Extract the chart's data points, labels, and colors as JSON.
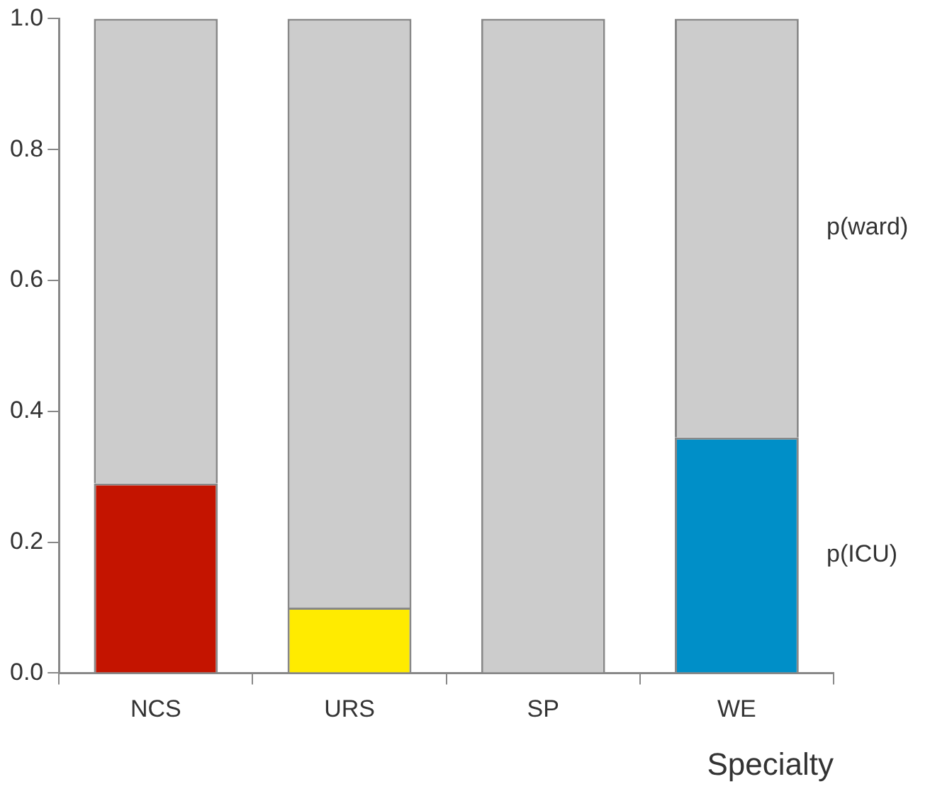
{
  "chart_data": {
    "type": "bar",
    "stacked": true,
    "xlabel": "Specialty",
    "categories": [
      "NCS",
      "URS",
      "SP",
      "WE"
    ],
    "series": [
      {
        "name": "p(ICU)",
        "colors": [
          "#c41400",
          "#ffeb00",
          "#c41400",
          "#008fc8"
        ],
        "values": [
          0.29,
          0.1,
          0,
          0.36
        ]
      },
      {
        "name": "p(ward)",
        "color": "#cccccc",
        "values": [
          0.71,
          0.9,
          1.0,
          0.64
        ]
      }
    ],
    "ylim": [
      0,
      1.0
    ],
    "yticks": [
      {
        "value": 0,
        "label": "0.0"
      },
      {
        "value": 0.2,
        "label": "0.2"
      },
      {
        "value": 0.4,
        "label": "0.4"
      },
      {
        "value": 0.6,
        "label": "0.6"
      },
      {
        "value": 0.8,
        "label": "0.8"
      },
      {
        "value": 1.0,
        "label": "1.0"
      }
    ],
    "grid": false,
    "legend": false
  }
}
